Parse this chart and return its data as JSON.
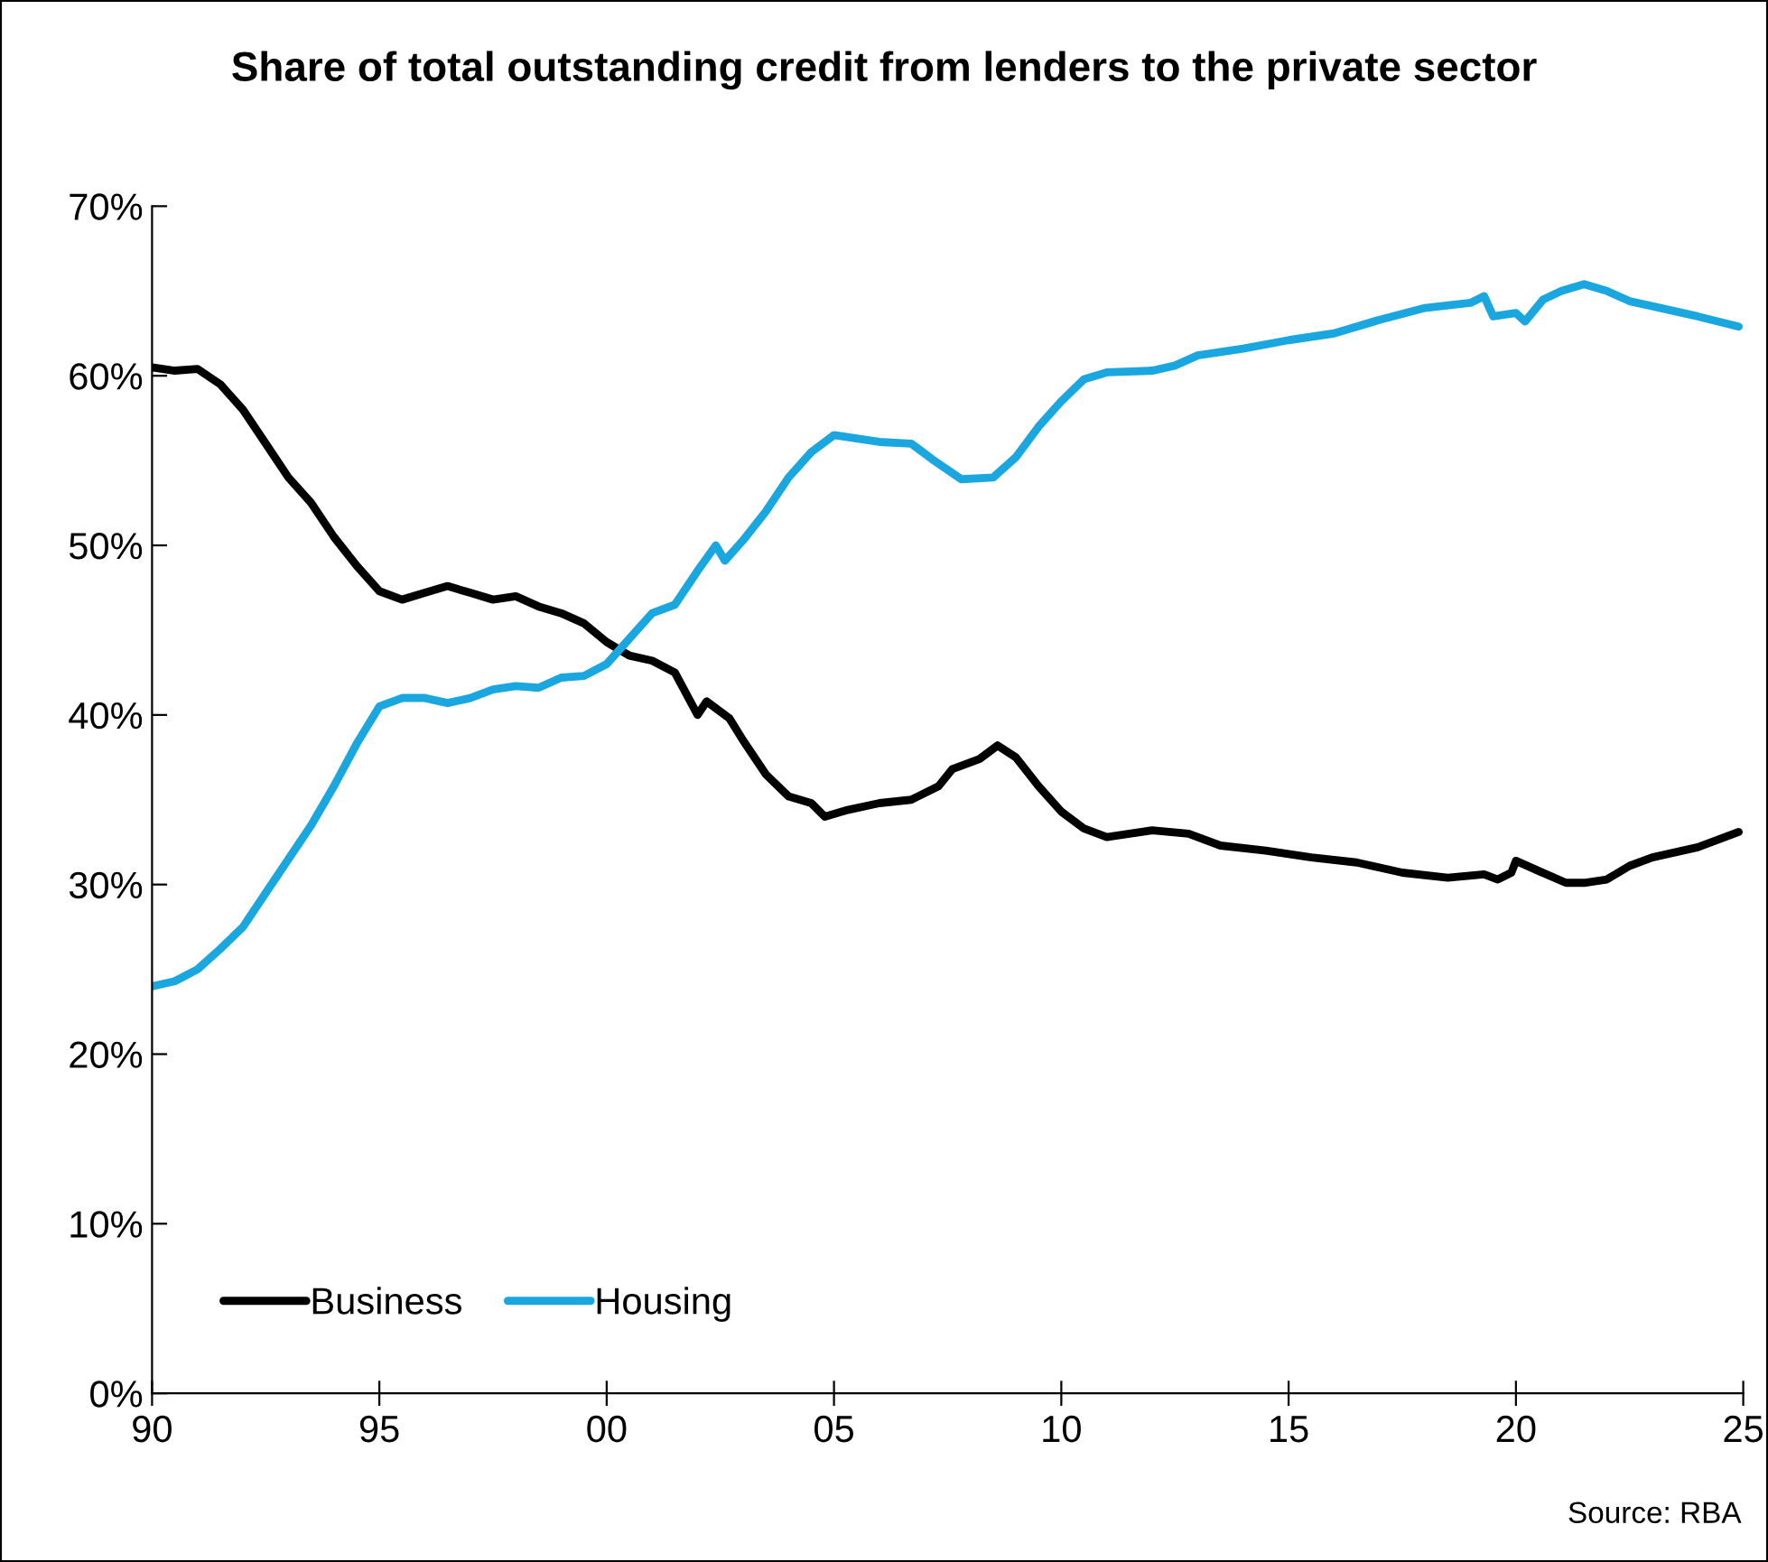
{
  "chart_data": {
    "type": "line",
    "title": "Share of total outstanding credit from lenders to the private sector",
    "xlim": [
      1990,
      2025
    ],
    "xticks": [
      {
        "value": 1990,
        "label": "90"
      },
      {
        "value": 1995,
        "label": "95"
      },
      {
        "value": 2000,
        "label": "00"
      },
      {
        "value": 2005,
        "label": "05"
      },
      {
        "value": 2010,
        "label": "10"
      },
      {
        "value": 2015,
        "label": "15"
      },
      {
        "value": 2020,
        "label": "20"
      },
      {
        "value": 2025,
        "label": "25"
      }
    ],
    "ylim": [
      0,
      70
    ],
    "yticks": [
      {
        "value": 0,
        "label": "0%"
      },
      {
        "value": 10,
        "label": "10%"
      },
      {
        "value": 20,
        "label": "20%"
      },
      {
        "value": 30,
        "label": "30%"
      },
      {
        "value": 40,
        "label": "40%"
      },
      {
        "value": 50,
        "label": "50%"
      },
      {
        "value": 60,
        "label": "60%"
      },
      {
        "value": 70,
        "label": "70%"
      }
    ],
    "grid": false,
    "legend": "bottom left",
    "marker": "none",
    "line_style": "solid",
    "annotations": [
      "Source: RBA"
    ],
    "series": [
      {
        "name": "Business",
        "color": "#000000",
        "x": [
          1990.0,
          1990.5,
          1991.0,
          1991.5,
          1992.0,
          1992.5,
          1993.0,
          1993.5,
          1994.0,
          1994.5,
          1995.0,
          1995.5,
          1996.0,
          1996.5,
          1997.0,
          1997.5,
          1998.0,
          1998.5,
          1999.0,
          1999.5,
          2000.0,
          2000.5,
          2001.0,
          2001.5,
          2002.0,
          2002.2,
          2002.7,
          2003.0,
          2003.5,
          2004.0,
          2004.5,
          2004.8,
          2005.3,
          2006.0,
          2006.7,
          2007.3,
          2007.6,
          2008.2,
          2008.6,
          2009.0,
          2009.5,
          2010.0,
          2010.5,
          2011.0,
          2011.5,
          2012.0,
          2012.8,
          2013.5,
          2014.5,
          2015.5,
          2016.5,
          2017.5,
          2018.5,
          2019.3,
          2019.6,
          2019.9,
          2020.0,
          2020.5,
          2021.1,
          2021.5,
          2022.0,
          2022.5,
          2023.0,
          2024.0,
          2024.9
        ],
        "values": [
          60.5,
          60.3,
          60.4,
          59.5,
          58,
          56,
          54,
          52.5,
          50.5,
          48.8,
          47.3,
          46.8,
          47.2,
          47.6,
          47.2,
          46.8,
          47,
          46.4,
          46,
          45.4,
          44.3,
          43.5,
          43.2,
          42.5,
          40,
          40.8,
          39.8,
          38.5,
          36.5,
          35.2,
          34.8,
          34,
          34.4,
          34.8,
          35,
          35.8,
          36.8,
          37.4,
          38.2,
          37.5,
          35.8,
          34.3,
          33.3,
          32.8,
          33,
          33.2,
          33,
          32.3,
          32,
          31.6,
          31.3,
          30.7,
          30.4,
          30.6,
          30.3,
          30.7,
          31.4,
          30.8,
          30.1,
          30.1,
          30.3,
          31.1,
          31.6,
          32.2,
          33.1
        ]
      },
      {
        "name": "Housing",
        "color": "#1aa7e0",
        "x": [
          1990.0,
          1990.5,
          1991.0,
          1991.5,
          1992.0,
          1992.5,
          1993.0,
          1993.5,
          1994.0,
          1994.5,
          1995.0,
          1995.5,
          1996.0,
          1996.5,
          1997.0,
          1997.5,
          1998.0,
          1998.5,
          1999.0,
          1999.5,
          2000.0,
          2000.5,
          2001.0,
          2001.5,
          2002.0,
          2002.4,
          2002.6,
          2003.0,
          2003.5,
          2004.0,
          2004.5,
          2005.0,
          2005.5,
          2006.0,
          2006.7,
          2007.2,
          2007.8,
          2008.5,
          2009.0,
          2009.5,
          2010.0,
          2010.5,
          2011.0,
          2012.0,
          2012.5,
          2013.0,
          2014.0,
          2015.0,
          2016.0,
          2017.0,
          2018.0,
          2019.0,
          2019.3,
          2019.5,
          2020.0,
          2020.2,
          2020.6,
          2021.0,
          2021.5,
          2022.0,
          2022.5,
          2023.0,
          2024.0,
          2024.9
        ],
        "values": [
          24,
          24.3,
          25,
          26.2,
          27.5,
          29.5,
          31.5,
          33.5,
          35.8,
          38.3,
          40.5,
          41,
          41,
          40.7,
          41,
          41.5,
          41.7,
          41.6,
          42.2,
          42.3,
          43,
          44.5,
          46,
          46.5,
          48.5,
          50,
          49.1,
          50.3,
          52,
          54,
          55.5,
          56.5,
          56.3,
          56.1,
          56,
          55,
          53.9,
          54,
          55.2,
          57,
          58.5,
          59.8,
          60.2,
          60.3,
          60.6,
          61.2,
          61.6,
          62.1,
          62.5,
          63.3,
          64,
          64.3,
          64.7,
          63.5,
          63.7,
          63.2,
          64.5,
          65,
          65.4,
          65,
          64.4,
          64.1,
          63.5,
          62.9
        ]
      }
    ]
  }
}
